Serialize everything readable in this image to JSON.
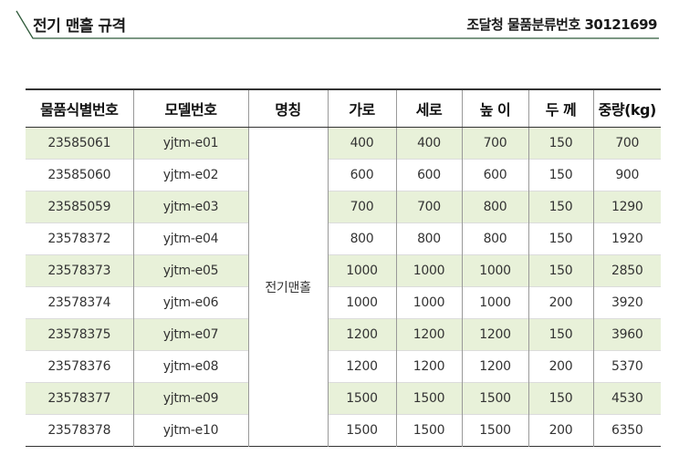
{
  "header": {
    "title": "전기 맨홀 규격",
    "classification": "조달청 물품분류번호 30121699"
  },
  "table": {
    "columns": [
      "물품식별번호",
      "모델번호",
      "명칭",
      "가로",
      "세로",
      "높 이",
      "두 께",
      "중량(kg)"
    ],
    "name": "전기맨홀",
    "rows": [
      {
        "id": "23585061",
        "model": "yjtm-e01",
        "w": "400",
        "l": "400",
        "h": "700",
        "t": "150",
        "kg": "700"
      },
      {
        "id": "23585060",
        "model": "yjtm-e02",
        "w": "600",
        "l": "600",
        "h": "600",
        "t": "150",
        "kg": "900"
      },
      {
        "id": "23585059",
        "model": "yjtm-e03",
        "w": "700",
        "l": "700",
        "h": "800",
        "t": "150",
        "kg": "1290"
      },
      {
        "id": "23578372",
        "model": "yjtm-e04",
        "w": "800",
        "l": "800",
        "h": "800",
        "t": "150",
        "kg": "1920"
      },
      {
        "id": "23578373",
        "model": "yjtm-e05",
        "w": "1000",
        "l": "1000",
        "h": "1000",
        "t": "150",
        "kg": "2850"
      },
      {
        "id": "23578374",
        "model": "yjtm-e06",
        "w": "1000",
        "l": "1000",
        "h": "1000",
        "t": "200",
        "kg": "3920"
      },
      {
        "id": "23578375",
        "model": "yjtm-e07",
        "w": "1200",
        "l": "1200",
        "h": "1200",
        "t": "150",
        "kg": "3960"
      },
      {
        "id": "23578376",
        "model": "yjtm-e08",
        "w": "1200",
        "l": "1200",
        "h": "1200",
        "t": "200",
        "kg": "5370"
      },
      {
        "id": "23578377",
        "model": "yjtm-e09",
        "w": "1500",
        "l": "1500",
        "h": "1500",
        "t": "150",
        "kg": "4530"
      },
      {
        "id": "23578378",
        "model": "yjtm-e10",
        "w": "1500",
        "l": "1500",
        "h": "1500",
        "t": "200",
        "kg": "6350"
      }
    ]
  },
  "colors": {
    "accent_line": "#2f5a3a",
    "row_stripe": "#e8f1d9"
  }
}
